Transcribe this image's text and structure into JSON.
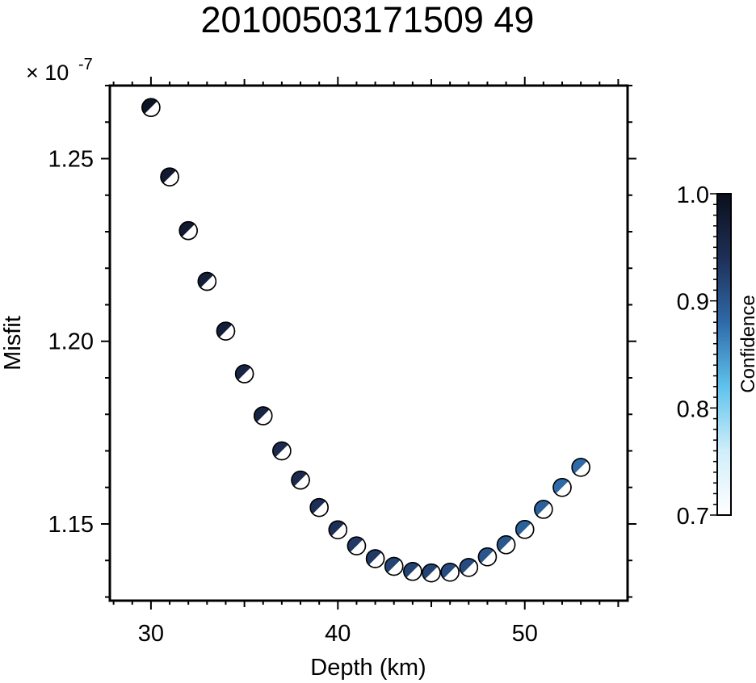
{
  "chart_data": {
    "type": "scatter",
    "title": "20100503171509 49",
    "xlabel": "Depth (km)",
    "ylabel": "Misfit",
    "y_multiplier": "× 10",
    "y_exponent": "-7",
    "xlim": [
      27.8,
      55.5
    ],
    "ylim": [
      1.129,
      1.27
    ],
    "x_ticks": [
      30,
      40,
      50
    ],
    "x_tick_labels": [
      "30",
      "40",
      "50"
    ],
    "y_ticks": [
      1.15,
      1.2,
      1.25
    ],
    "y_tick_labels": [
      "1.15",
      "1.20",
      "1.25"
    ],
    "grid": false,
    "colorbar": {
      "label": "Confidence",
      "range": [
        0.7,
        1.0
      ],
      "ticks": [
        0.7,
        0.8,
        0.9,
        1.0
      ],
      "tick_labels": [
        "0.7",
        "0.8",
        "0.9",
        "1.0"
      ],
      "colors": [
        "#ffffff",
        "#cfeefa",
        "#5fc2ec",
        "#2e6aa8",
        "#1e2f57",
        "#0a0f1c"
      ]
    },
    "points": [
      {
        "depth": 30,
        "misfit": 1.264,
        "confidence": 0.99
      },
      {
        "depth": 31,
        "misfit": 1.245,
        "confidence": 0.98
      },
      {
        "depth": 32,
        "misfit": 1.2303,
        "confidence": 0.98
      },
      {
        "depth": 33,
        "misfit": 1.2164,
        "confidence": 0.97
      },
      {
        "depth": 34,
        "misfit": 1.2028,
        "confidence": 0.97
      },
      {
        "depth": 35,
        "misfit": 1.1911,
        "confidence": 0.96
      },
      {
        "depth": 36,
        "misfit": 1.1796,
        "confidence": 0.96
      },
      {
        "depth": 37,
        "misfit": 1.17,
        "confidence": 0.95
      },
      {
        "depth": 38,
        "misfit": 1.162,
        "confidence": 0.95
      },
      {
        "depth": 39,
        "misfit": 1.1545,
        "confidence": 0.94
      },
      {
        "depth": 40,
        "misfit": 1.1484,
        "confidence": 0.94
      },
      {
        "depth": 41,
        "misfit": 1.144,
        "confidence": 0.93
      },
      {
        "depth": 42,
        "misfit": 1.1405,
        "confidence": 0.93
      },
      {
        "depth": 43,
        "misfit": 1.1384,
        "confidence": 0.92
      },
      {
        "depth": 44,
        "misfit": 1.137,
        "confidence": 0.92
      },
      {
        "depth": 45,
        "misfit": 1.1366,
        "confidence": 0.92
      },
      {
        "depth": 46,
        "misfit": 1.1368,
        "confidence": 0.91
      },
      {
        "depth": 47,
        "misfit": 1.1381,
        "confidence": 0.91
      },
      {
        "depth": 48,
        "misfit": 1.141,
        "confidence": 0.9
      },
      {
        "depth": 49,
        "misfit": 1.1443,
        "confidence": 0.9
      },
      {
        "depth": 50,
        "misfit": 1.1485,
        "confidence": 0.89
      },
      {
        "depth": 51,
        "misfit": 1.154,
        "confidence": 0.89
      },
      {
        "depth": 52,
        "misfit": 1.16,
        "confidence": 0.88
      },
      {
        "depth": 53,
        "misfit": 1.1655,
        "confidence": 0.88
      }
    ]
  }
}
